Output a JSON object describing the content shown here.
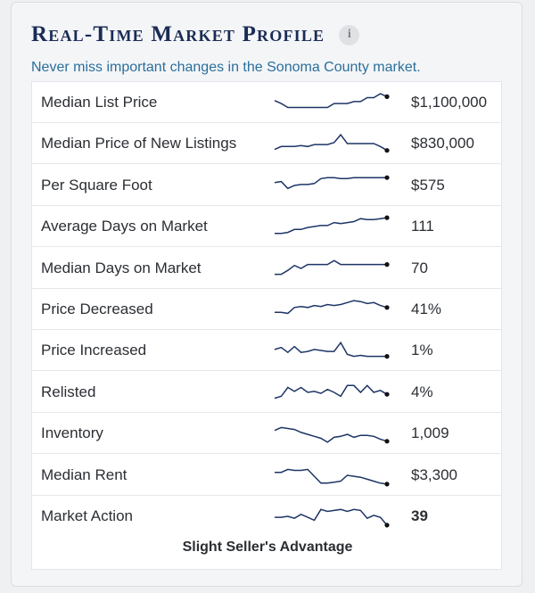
{
  "widget": {
    "title": "Real-Time Market Profile",
    "info_icon": "info-icon",
    "subtitle": "Never miss important changes in the Sonoma County market.",
    "line_color": "#1d3566",
    "rows": [
      {
        "label": "Median List Price",
        "value": "$1,100,000",
        "trend": [
          0.6,
          0.45,
          0.25,
          0.25,
          0.25,
          0.25,
          0.25,
          0.25,
          0.25,
          0.45,
          0.45,
          0.45,
          0.55,
          0.55,
          0.75,
          0.75,
          0.95,
          0.8
        ]
      },
      {
        "label": "Median Price of New Listings",
        "value": "$830,000",
        "trend": [
          0.2,
          0.35,
          0.35,
          0.35,
          0.4,
          0.35,
          0.45,
          0.45,
          0.45,
          0.55,
          0.95,
          0.5,
          0.5,
          0.5,
          0.5,
          0.5,
          0.35,
          0.15
        ]
      },
      {
        "label": "Per Square Foot",
        "value": "$575",
        "trend": [
          0.65,
          0.7,
          0.35,
          0.5,
          0.55,
          0.55,
          0.6,
          0.85,
          0.9,
          0.9,
          0.85,
          0.85,
          0.9,
          0.9,
          0.9,
          0.9,
          0.9,
          0.9
        ]
      },
      {
        "label": "Average Days on Market",
        "value": "111",
        "trend": [
          0.15,
          0.15,
          0.2,
          0.35,
          0.35,
          0.45,
          0.5,
          0.55,
          0.55,
          0.7,
          0.65,
          0.7,
          0.75,
          0.9,
          0.85,
          0.85,
          0.9,
          0.95
        ]
      },
      {
        "label": "Median Days on Market",
        "value": "70",
        "trend": [
          0.2,
          0.2,
          0.4,
          0.65,
          0.5,
          0.7,
          0.7,
          0.7,
          0.7,
          0.9,
          0.7,
          0.7,
          0.7,
          0.7,
          0.7,
          0.7,
          0.7,
          0.7
        ]
      },
      {
        "label": "Price Decreased",
        "value": "41%",
        "trend": [
          0.35,
          0.35,
          0.3,
          0.6,
          0.65,
          0.6,
          0.7,
          0.65,
          0.75,
          0.7,
          0.75,
          0.85,
          0.95,
          0.9,
          0.8,
          0.85,
          0.7,
          0.6
        ]
      },
      {
        "label": "Price Increased",
        "value": "1%",
        "trend": [
          0.55,
          0.65,
          0.4,
          0.7,
          0.4,
          0.45,
          0.55,
          0.5,
          0.45,
          0.45,
          0.9,
          0.3,
          0.2,
          0.25,
          0.2,
          0.2,
          0.2,
          0.2
        ]
      },
      {
        "label": "Relisted",
        "value": "4%",
        "trend": [
          0.2,
          0.3,
          0.75,
          0.55,
          0.75,
          0.5,
          0.55,
          0.45,
          0.65,
          0.5,
          0.3,
          0.85,
          0.85,
          0.5,
          0.85,
          0.5,
          0.6,
          0.4
        ]
      },
      {
        "label": "Inventory",
        "value": "1,009",
        "trend": [
          0.65,
          0.8,
          0.75,
          0.7,
          0.55,
          0.45,
          0.35,
          0.25,
          0.05,
          0.3,
          0.35,
          0.45,
          0.3,
          0.4,
          0.4,
          0.35,
          0.2,
          0.1
        ]
      },
      {
        "label": "Median Rent",
        "value": "$3,300",
        "trend": [
          0.65,
          0.65,
          0.8,
          0.75,
          0.75,
          0.8,
          0.45,
          0.1,
          0.1,
          0.15,
          0.2,
          0.5,
          0.45,
          0.4,
          0.3,
          0.2,
          0.1,
          0.05
        ]
      },
      {
        "label": "Market Action",
        "value": "39",
        "trend": [
          0.45,
          0.45,
          0.5,
          0.4,
          0.6,
          0.45,
          0.3,
          0.85,
          0.75,
          0.8,
          0.85,
          0.75,
          0.85,
          0.8,
          0.4,
          0.55,
          0.45,
          0.05
        ]
      }
    ],
    "market_action_status": "Slight Seller's Advantage"
  }
}
